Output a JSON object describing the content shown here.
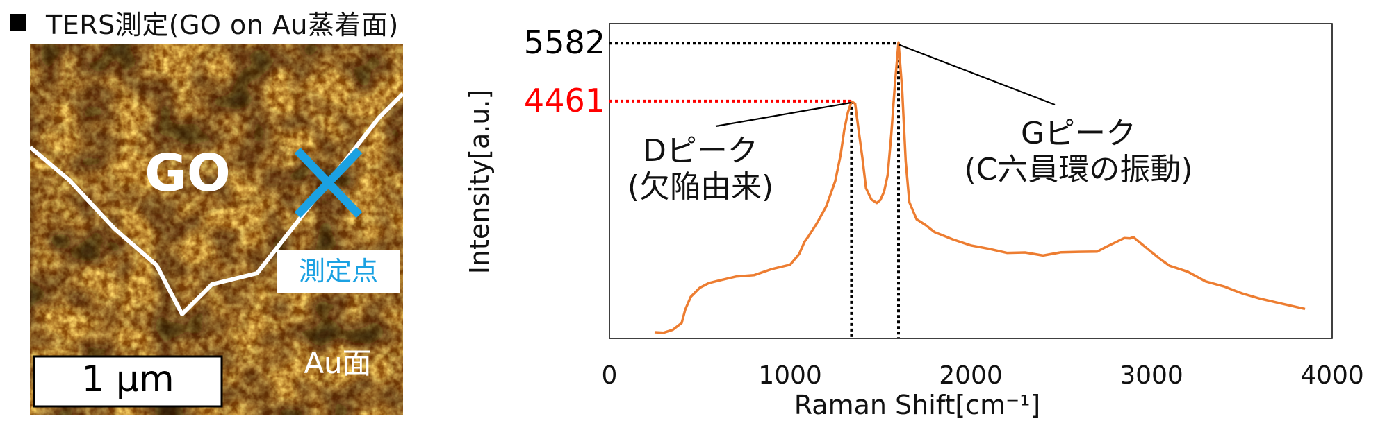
{
  "heading": "TERS測定(GO on Au蒸着面)",
  "afm_image": {
    "region_label": "GO",
    "substrate_label": "Au面",
    "measurement_point_label": "測定点",
    "scale_bar": "1 μm",
    "colors": {
      "outline": "#ffffff",
      "marker": "#1ba1e2"
    }
  },
  "chart_data": {
    "type": "line",
    "xlabel": "Raman Shift[cm⁻¹]",
    "ylabel": "Intensity[a.u.]",
    "xlim": [
      0,
      4000
    ],
    "x_ticks": [
      0,
      1000,
      2000,
      3000,
      4000
    ],
    "grid": false,
    "series": [
      {
        "color": "#ed7d31",
        "x": [
          250,
          300,
          350,
          400,
          420,
          450,
          500,
          550,
          600,
          700,
          800,
          900,
          1000,
          1050,
          1080,
          1100,
          1150,
          1200,
          1250,
          1280,
          1300,
          1320,
          1340,
          1360,
          1380,
          1400,
          1420,
          1450,
          1480,
          1500,
          1520,
          1540,
          1560,
          1580,
          1600,
          1620,
          1640,
          1660,
          1700,
          1750,
          1800,
          1850,
          1900,
          2000,
          2100,
          2200,
          2300,
          2400,
          2500,
          2600,
          2700,
          2750,
          2800,
          2850,
          2880,
          2900,
          2950,
          3000,
          3050,
          3100,
          3200,
          3300,
          3400,
          3500,
          3600,
          3700,
          3850
        ],
        "y": [
          0,
          0,
          30,
          200,
          420,
          700,
          850,
          950,
          1000,
          1060,
          1120,
          1200,
          1320,
          1500,
          1750,
          1850,
          2100,
          2450,
          2900,
          3450,
          3900,
          4250,
          4461,
          4400,
          3900,
          3350,
          2800,
          2550,
          2500,
          2560,
          2700,
          3050,
          3800,
          4800,
          5582,
          4700,
          3300,
          2500,
          2200,
          2050,
          1950,
          1850,
          1800,
          1680,
          1600,
          1550,
          1520,
          1500,
          1530,
          1560,
          1560,
          1640,
          1750,
          1800,
          1830,
          1820,
          1700,
          1550,
          1400,
          1300,
          1150,
          1000,
          870,
          760,
          650,
          560,
          450
        ]
      }
    ],
    "annotations": [
      {
        "label": "Dピーク",
        "sublabel": "(欠陥由来)",
        "x": 1340,
        "y": 4461,
        "value_label": "4461",
        "value_color": "#ff0000"
      },
      {
        "label": "Gピーク",
        "sublabel": "(C六員環の振動)",
        "x": 1600,
        "y": 5582,
        "value_label": "5582",
        "value_color": "#000000"
      }
    ]
  }
}
